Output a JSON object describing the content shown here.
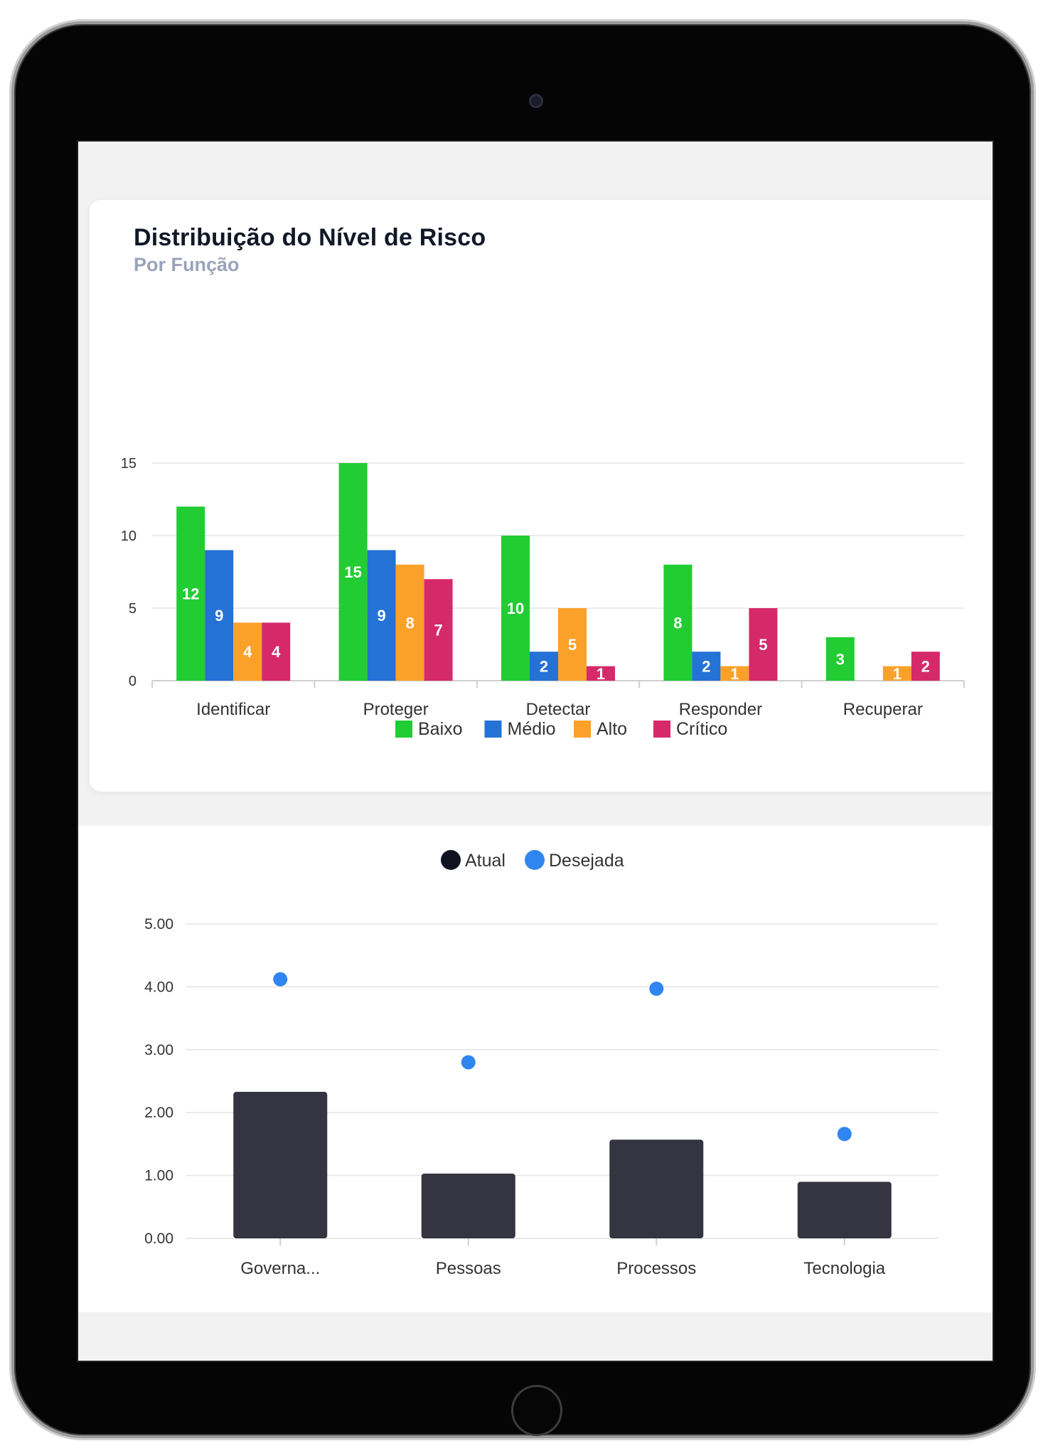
{
  "risk_card": {
    "title": "Distribuição do Nível de Risco",
    "subtitle": "Por Função"
  },
  "colors": {
    "baixo": "#22cc33",
    "medio": "#2472d6",
    "alto": "#fba12a",
    "critico": "#d6296a",
    "atual": "#343540",
    "desejada": "#2f86f0",
    "grid": "#e4e4e4",
    "axis_text": "#333333"
  },
  "chart_data": [
    {
      "type": "bar",
      "title": "Distribuição do Nível de Risco",
      "subtitle": "Por Função",
      "categories": [
        "Identificar",
        "Proteger",
        "Detectar",
        "Responder",
        "Recuperar"
      ],
      "series": [
        {
          "name": "Baixo",
          "values": [
            12,
            15,
            10,
            8,
            3
          ]
        },
        {
          "name": "Médio",
          "values": [
            9,
            9,
            2,
            2,
            0
          ]
        },
        {
          "name": "Alto",
          "values": [
            4,
            8,
            5,
            1,
            1
          ]
        },
        {
          "name": "Crítico",
          "values": [
            4,
            7,
            1,
            5,
            2
          ]
        }
      ],
      "ylim": [
        0,
        15
      ],
      "yticks": [
        "0",
        "5",
        "10",
        "15"
      ],
      "legend_position": "bottom",
      "data_labels": true,
      "grid": true
    },
    {
      "type": "bar",
      "categories": [
        "Governa...",
        "Pessoas",
        "Processos",
        "Tecnologia"
      ],
      "series": [
        {
          "name": "Atual",
          "values": [
            2.33,
            1.03,
            1.57,
            0.9
          ]
        },
        {
          "name": "Desejada",
          "values": [
            4.12,
            2.8,
            3.97,
            1.66
          ]
        }
      ],
      "ylim": [
        0,
        5
      ],
      "yticks": [
        "0.00",
        "1.00",
        "2.00",
        "3.00",
        "4.00",
        "5.00"
      ],
      "legend_position": "top",
      "grid": true
    }
  ]
}
